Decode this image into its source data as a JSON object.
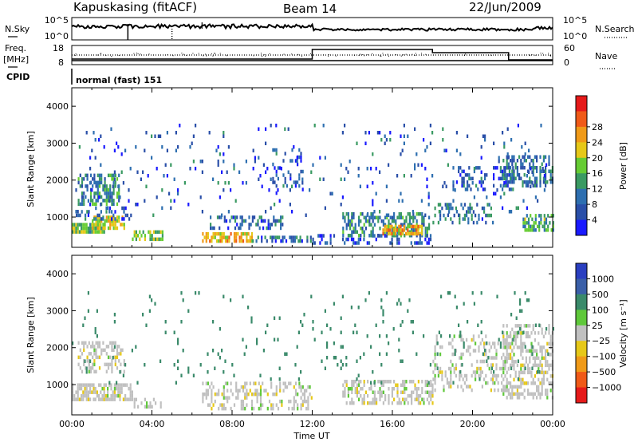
{
  "header": {
    "station": "Kapuskasing (fitACF)",
    "beam": "Beam 14",
    "date": "22/Jun/2009"
  },
  "noise_panel": {
    "left_label": "N.Sky",
    "right_label": "N.Search",
    "left_ticks": [
      "10^5",
      "10^0"
    ],
    "right_ticks": [
      "10^5",
      "10^0"
    ]
  },
  "freq_panel": {
    "left_label_top": "Freq.",
    "left_label_unit": "[MHz]",
    "left_ticks": [
      "18",
      "8"
    ],
    "right_label": "Nave",
    "right_ticks": [
      "60",
      "0"
    ],
    "cpid_label": "CPID",
    "mode_text": "normal (fast) 151"
  },
  "colors": {
    "power_scale": [
      "#1a1aff",
      "#2a4fa8",
      "#2e6fb0",
      "#3a9a62",
      "#66cc33",
      "#e6c818",
      "#f09a18",
      "#f05a18",
      "#e61a1a"
    ],
    "velocity_scale": [
      "#2a3fc0",
      "#3a5fa8",
      "#3a8a6a",
      "#5fc83a",
      "#c0c0c0",
      "#e6c818",
      "#f09a18",
      "#f05a18",
      "#e61a1a"
    ]
  },
  "chart_data": [
    {
      "type": "heatmap",
      "quantity": "power",
      "ylabel": "Slant Range [km]",
      "ylim": [
        180,
        4500
      ],
      "yticks": [
        "1000",
        "2000",
        "3000",
        "4000"
      ],
      "xlim_hours": [
        0,
        24
      ],
      "colorbar_label": "Power [dB]",
      "colorbar_ticks": [
        "4",
        "8",
        "12",
        "16",
        "20",
        "24",
        "28"
      ],
      "colorbar_range": [
        0,
        30
      ],
      "features": [
        {
          "t0": 0.0,
          "t1": 1.6,
          "r0": 550,
          "r1": 800,
          "value": 14,
          "density": 0.9
        },
        {
          "t0": 1.0,
          "t1": 2.6,
          "r0": 650,
          "r1": 950,
          "value": 18,
          "density": 0.7
        },
        {
          "t0": 0.3,
          "t1": 2.4,
          "r0": 1300,
          "r1": 2100,
          "value": 10,
          "density": 0.5
        },
        {
          "t0": 0.2,
          "t1": 3.0,
          "r0": 900,
          "r1": 1200,
          "value": 6,
          "density": 0.3
        },
        {
          "t0": 3.0,
          "t1": 4.5,
          "r0": 350,
          "r1": 600,
          "value": 15,
          "density": 0.5
        },
        {
          "t0": 6.5,
          "t1": 9.0,
          "r0": 300,
          "r1": 500,
          "value": 20,
          "density": 0.7
        },
        {
          "t0": 6.8,
          "t1": 10.5,
          "r0": 650,
          "r1": 1000,
          "value": 7,
          "density": 0.4
        },
        {
          "t0": 9.0,
          "t1": 12.2,
          "r0": 300,
          "r1": 450,
          "value": 8,
          "density": 0.5
        },
        {
          "t0": 10.0,
          "t1": 11.5,
          "r0": 1600,
          "r1": 2800,
          "value": 6,
          "density": 0.2
        },
        {
          "t0": 13.5,
          "t1": 17.8,
          "r0": 450,
          "r1": 1100,
          "value": 10,
          "density": 0.5
        },
        {
          "t0": 15.5,
          "t1": 17.5,
          "r0": 500,
          "r1": 700,
          "value": 20,
          "density": 0.8
        },
        {
          "t0": 12.0,
          "t1": 18.0,
          "r0": 250,
          "r1": 450,
          "value": 5,
          "density": 0.3
        },
        {
          "t0": 18.0,
          "t1": 21.0,
          "r0": 800,
          "r1": 1300,
          "value": 8,
          "density": 0.35
        },
        {
          "t0": 19.0,
          "t1": 22.0,
          "r0": 1700,
          "r1": 2300,
          "value": 6,
          "density": 0.3
        },
        {
          "t0": 21.5,
          "t1": 24.0,
          "r0": 1800,
          "r1": 2600,
          "value": 8,
          "density": 0.5
        },
        {
          "t0": 22.5,
          "t1": 24.0,
          "r0": 600,
          "r1": 1000,
          "value": 12,
          "density": 0.6
        },
        {
          "t0": 0.0,
          "t1": 24.0,
          "r0": 1000,
          "r1": 3500,
          "value": 6,
          "density": 0.04
        }
      ]
    },
    {
      "type": "heatmap",
      "quantity": "velocity",
      "ylabel": "Slant Range [km]",
      "ylim": [
        180,
        4500
      ],
      "yticks": [
        "1000",
        "2000",
        "3000",
        "4000"
      ],
      "xlabel": "Time UT",
      "xticks": [
        "00:00",
        "04:00",
        "08:00",
        "12:00",
        "16:00",
        "20:00",
        "00:00"
      ],
      "xlim_hours": [
        0,
        24
      ],
      "colorbar_label": "Velocity [m s⁻¹]",
      "colorbar_ticks": [
        "1000",
        "500",
        "100",
        "25",
        "−25",
        "−100",
        "−500",
        "−1000"
      ],
      "features": [
        {
          "t0": 0.0,
          "t1": 3.0,
          "r0": 550,
          "r1": 950,
          "value": 0,
          "density": 0.7
        },
        {
          "t0": 0.3,
          "t1": 2.6,
          "r0": 1300,
          "r1": 2100,
          "value": 0,
          "density": 0.4
        },
        {
          "t0": 3.0,
          "t1": 4.5,
          "r0": 350,
          "r1": 600,
          "value": 0,
          "density": 0.4
        },
        {
          "t0": 6.5,
          "t1": 12.0,
          "r0": 300,
          "r1": 1000,
          "value": 0,
          "density": 0.35
        },
        {
          "t0": 13.5,
          "t1": 18.0,
          "r0": 450,
          "r1": 1100,
          "value": 0,
          "density": 0.5
        },
        {
          "t0": 18.0,
          "t1": 22.0,
          "r0": 800,
          "r1": 2300,
          "value": 0,
          "density": 0.25
        },
        {
          "t0": 21.5,
          "t1": 24.0,
          "r0": 600,
          "r1": 2600,
          "value": 0,
          "density": 0.45
        },
        {
          "t0": 0.0,
          "t1": 24.0,
          "r0": 1000,
          "r1": 3500,
          "value": 300,
          "density": 0.03
        }
      ]
    }
  ]
}
